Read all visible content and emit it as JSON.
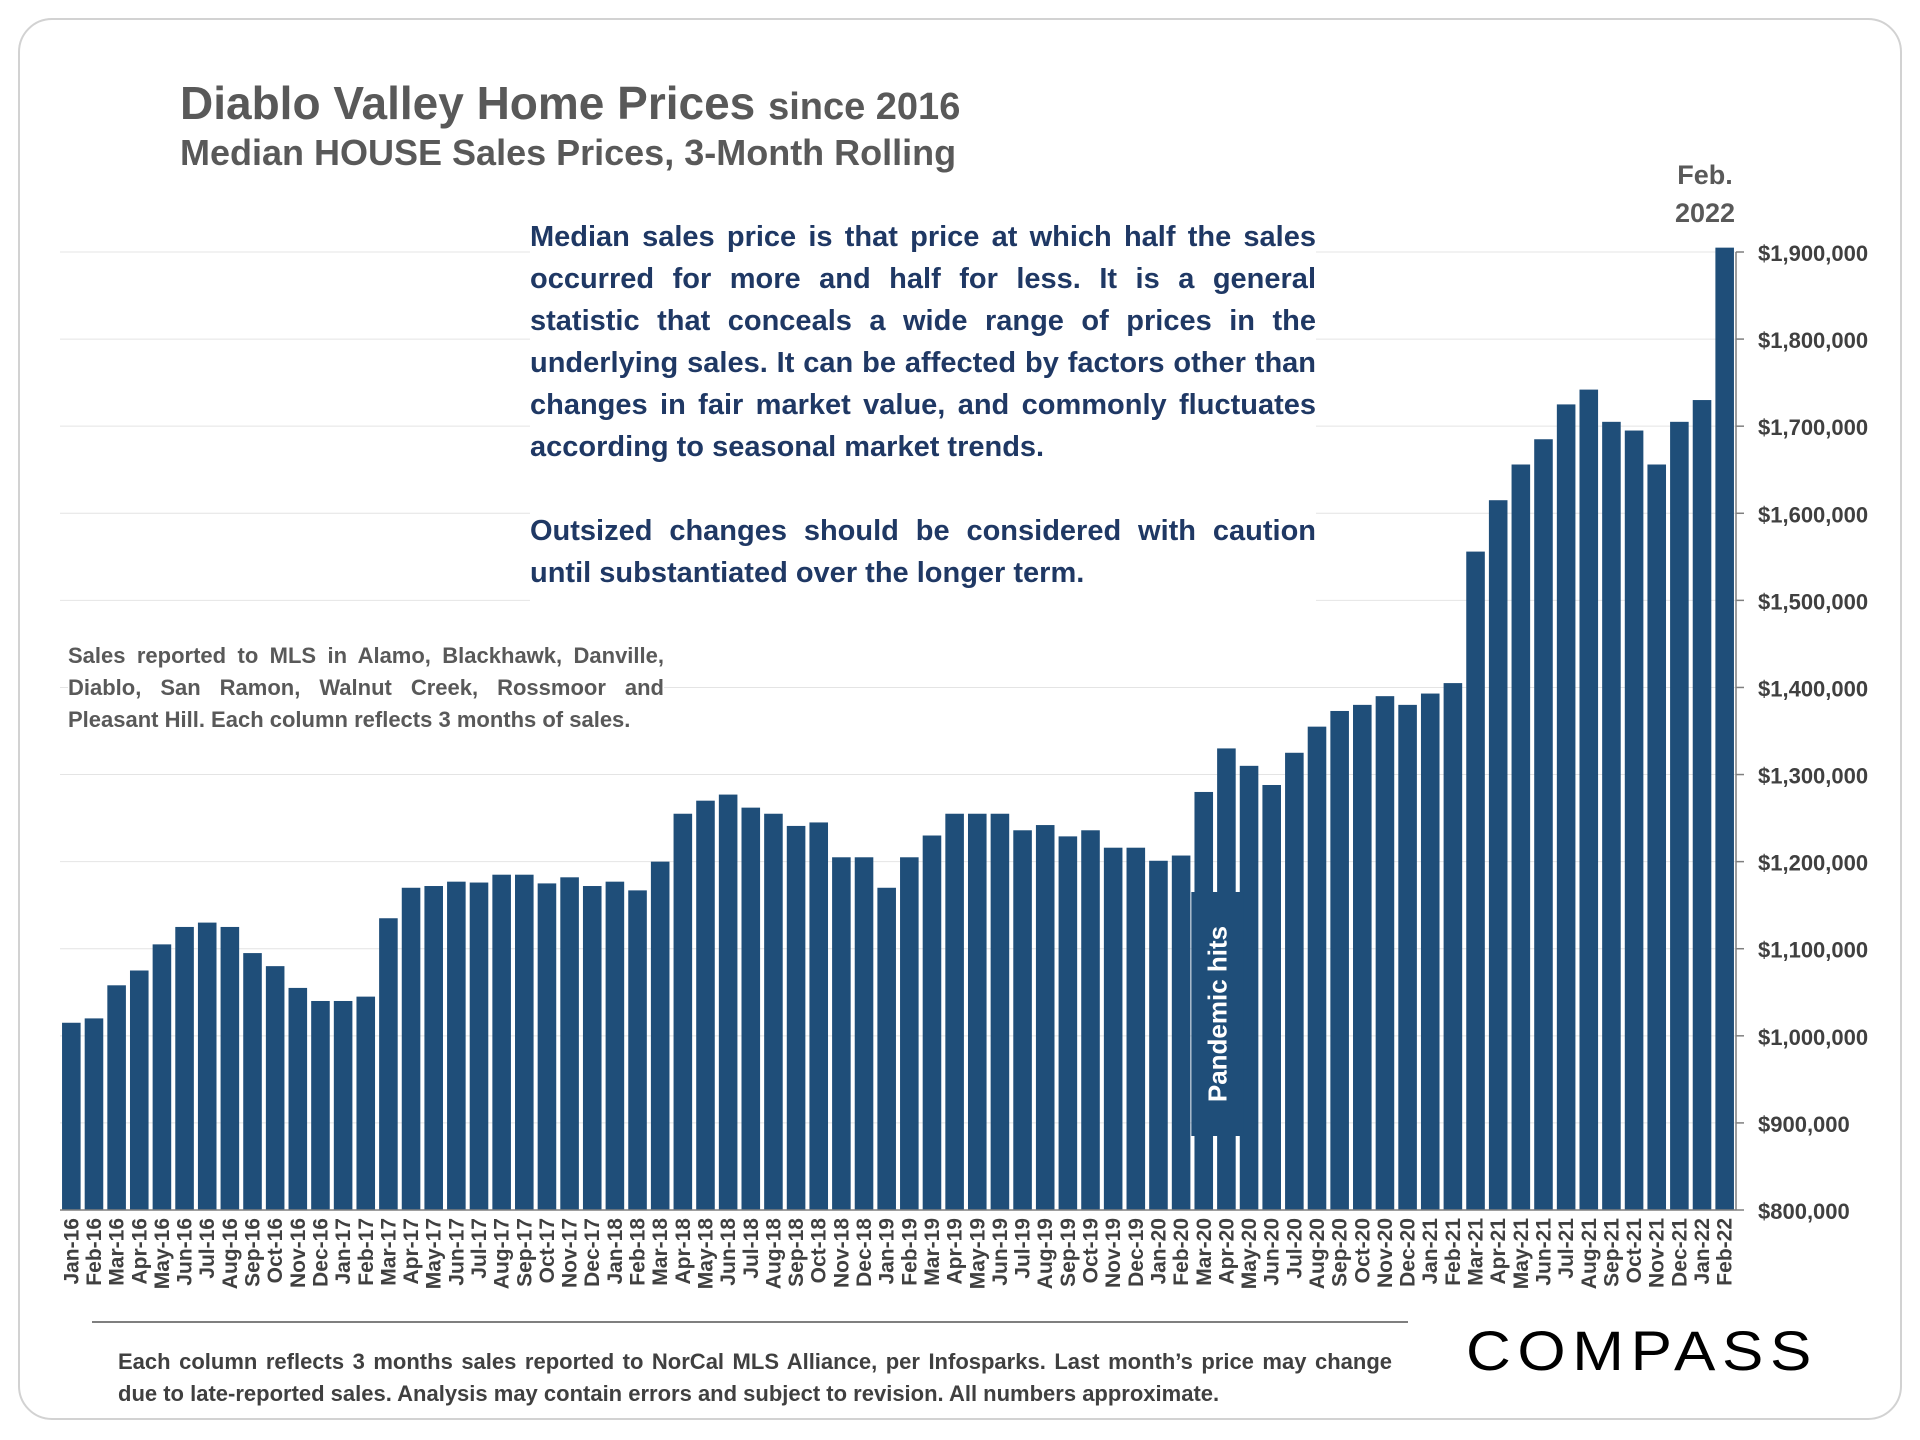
{
  "chart_data": {
    "type": "bar",
    "title": "Diablo Valley Home Prices",
    "title_suffix": "since 2016",
    "subtitle": "Median HOUSE Sales Prices, 3-Month Rolling",
    "xlabel": "",
    "ylabel": "",
    "ylim": [
      800000,
      1900000
    ],
    "grid": true,
    "y_ticks": [
      800000,
      900000,
      1000000,
      1100000,
      1200000,
      1300000,
      1400000,
      1500000,
      1600000,
      1700000,
      1800000,
      1900000
    ],
    "y_tick_labels": [
      "$800,000",
      "$900,000",
      "$1,000,000",
      "$1,100,000",
      "$1,200,000",
      "$1,300,000",
      "$1,400,000",
      "$1,500,000",
      "$1,600,000",
      "$1,700,000",
      "$1,800,000",
      "$1,900,000"
    ],
    "bar_color": "#1f4e79",
    "categories": [
      "Jan-16",
      "Feb-16",
      "Mar-16",
      "Apr-16",
      "May-16",
      "Jun-16",
      "Jul-16",
      "Aug-16",
      "Sep-16",
      "Oct-16",
      "Nov-16",
      "Dec-16",
      "Jan-17",
      "Feb-17",
      "Mar-17",
      "Apr-17",
      "May-17",
      "Jun-17",
      "Jul-17",
      "Aug-17",
      "Sep-17",
      "Oct-17",
      "Nov-17",
      "Dec-17",
      "Jan-18",
      "Feb-18",
      "Mar-18",
      "Apr-18",
      "May-18",
      "Jun-18",
      "Jul-18",
      "Aug-18",
      "Sep-18",
      "Oct-18",
      "Nov-18",
      "Dec-18",
      "Jan-19",
      "Feb-19",
      "Mar-19",
      "Apr-19",
      "May-19",
      "Jun-19",
      "Jul-19",
      "Aug-19",
      "Sep-19",
      "Oct-19",
      "Nov-19",
      "Dec-19",
      "Jan-20",
      "Feb-20",
      "Mar-20",
      "Apr-20",
      "May-20",
      "Jun-20",
      "Jul-20",
      "Aug-20",
      "Sep-20",
      "Oct-20",
      "Nov-20",
      "Dec-20",
      "Jan-21",
      "Feb-21",
      "Mar-21",
      "Apr-21",
      "May-21",
      "Jun-21",
      "Jul-21",
      "Aug-21",
      "Sep-21",
      "Oct-21",
      "Nov-21",
      "Dec-21",
      "Jan-22",
      "Feb-22"
    ],
    "values": [
      1015000,
      1020000,
      1058000,
      1075000,
      1105000,
      1125000,
      1130000,
      1125000,
      1095000,
      1080000,
      1055000,
      1040000,
      1040000,
      1045000,
      1135000,
      1170000,
      1172000,
      1177000,
      1176000,
      1185000,
      1185000,
      1175000,
      1182000,
      1172000,
      1177000,
      1167000,
      1200000,
      1255000,
      1270000,
      1277000,
      1262000,
      1255000,
      1241000,
      1245000,
      1205000,
      1205000,
      1170000,
      1205000,
      1230000,
      1255000,
      1255000,
      1255000,
      1236000,
      1242000,
      1229000,
      1236000,
      1216000,
      1216000,
      1201000,
      1207000,
      1280000,
      1330000,
      1310000,
      1288000,
      1325000,
      1355000,
      1373000,
      1380000,
      1390000,
      1380000,
      1393000,
      1405000,
      1556000,
      1615000,
      1656000,
      1685000,
      1725000,
      1742000,
      1705000,
      1695000,
      1656000,
      1705000,
      1730000,
      1905000
    ],
    "annotations": [
      {
        "text": "Pandemic hits",
        "category": "Mar-20"
      },
      {
        "text": "Feb. 2022",
        "category": "Feb-22"
      }
    ]
  },
  "labels": {
    "feb_line1": "Feb.",
    "feb_line2": "2022",
    "pandemic": "Pandemic hits"
  },
  "notes": {
    "median_definition": "Median sales price is that price at which half the sales occurred for more and half for less. It is a general statistic that conceals a wide range of prices in the underlying sales. It can be affected by factors other than changes in fair market value, and commonly fluctuates according to seasonal market trends.",
    "caution": "Outsized changes should be considered with caution until substantiated over the longer term.",
    "sales_reported": "Sales reported to MLS in Alamo, Blackhawk, Danville, Diablo, San Ramon, Walnut Creek, Rossmoor and Pleasant Hill. Each column reflects 3 months of sales.",
    "footnote": "Each column reflects 3 months sales reported to NorCal MLS Alliance, per Infosparks. Last month’s price may change due to late-reported sales. Analysis may contain errors and subject to revision. All numbers approximate."
  },
  "logo": {
    "text": "COMPASS"
  },
  "colors": {
    "bar": "#1f4e79",
    "note_text": "#1f3864",
    "title_text": "#595959"
  }
}
